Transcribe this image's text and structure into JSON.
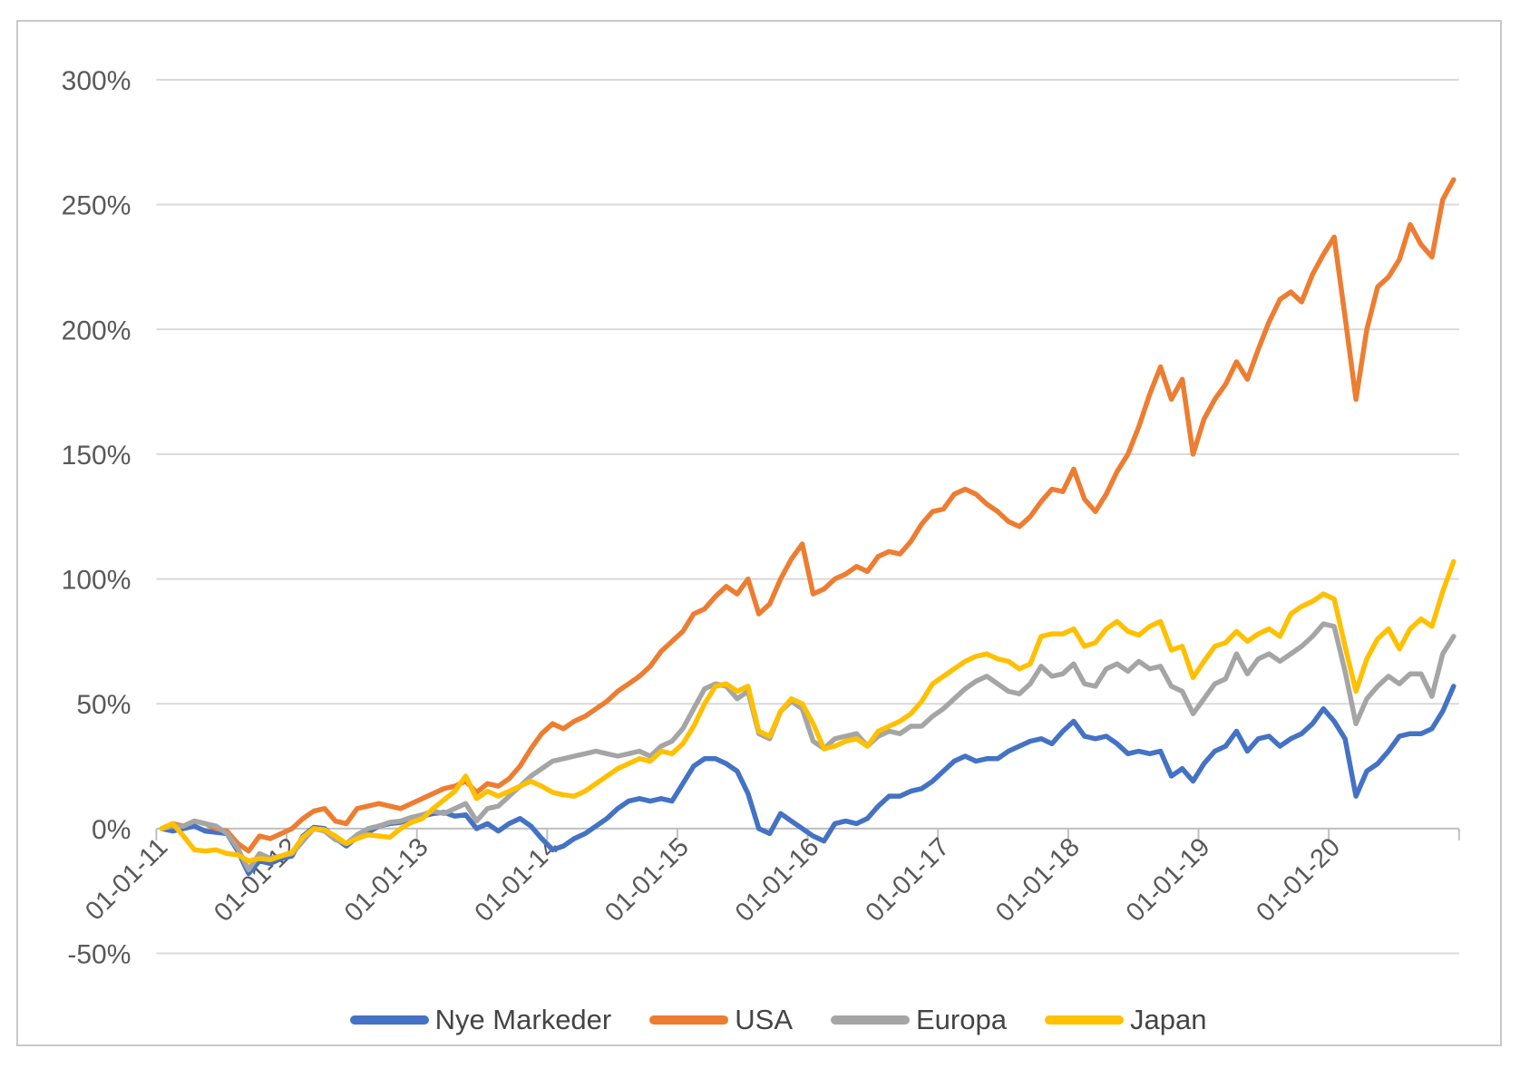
{
  "chart_data": {
    "type": "line",
    "title": "",
    "xlabel": "",
    "ylabel": "",
    "unit": "%",
    "grid": true,
    "legend_position": "bottom",
    "ylim": [
      -50,
      300
    ],
    "y_axis": {
      "tick_values": [
        300,
        250,
        200,
        150,
        100,
        50,
        0,
        -50
      ],
      "tick_labels": [
        "300%",
        "250%",
        "200%",
        "150%",
        "100%",
        "50%",
        "0%",
        "-50%"
      ]
    },
    "x_axis": {
      "tick_labels": [
        "01-01-11",
        "01-01-12",
        "01-01-13",
        "01-01-14",
        "01-01-15",
        "01-01-16",
        "01-01-17",
        "01-01-18",
        "01-01-19",
        "01-01-20"
      ],
      "months_per_tick": 12,
      "points_are_monthly": true,
      "first_point": "01-01-11",
      "last_point": "01-12-20"
    },
    "colors": {
      "gridline": "#d9d9d9",
      "axis_line": "#bfbfbf",
      "axis_text": "#595959",
      "legend_text": "#444444"
    },
    "series": [
      {
        "name": "Nye Markeder",
        "color": "#4472C4",
        "values": [
          0,
          -1,
          0,
          1,
          -1,
          -1.5,
          -2,
          -9,
          -18,
          -13,
          -14,
          -12,
          -11,
          -3,
          0.5,
          0,
          -4,
          -7,
          -3.5,
          -1.5,
          1,
          2,
          2.5,
          4,
          5,
          6,
          6.5,
          5,
          5.5,
          0,
          2,
          -1,
          2,
          4,
          1,
          -4,
          -8.5,
          -7,
          -4,
          -2,
          1,
          4,
          8,
          11,
          12,
          11,
          12,
          11,
          18,
          25,
          28,
          28,
          26,
          23,
          14,
          0,
          -2,
          6,
          3,
          0,
          -3,
          -5,
          2,
          3,
          2,
          4,
          9,
          13,
          13,
          15,
          16,
          19,
          23,
          27,
          29,
          27,
          28,
          28,
          31,
          33,
          35,
          36,
          34,
          39,
          43,
          37,
          36,
          37,
          34,
          30,
          31,
          30,
          31,
          21,
          24,
          19,
          26,
          31,
          33,
          39,
          31,
          36,
          37,
          33,
          36,
          38,
          42,
          48,
          43,
          36,
          13,
          23,
          26,
          31,
          37,
          38,
          38,
          40,
          47,
          57
        ]
      },
      {
        "name": "USA",
        "color": "#ED7D31",
        "values": [
          0,
          2,
          1,
          3,
          2,
          0,
          -1,
          -6,
          -9,
          -3,
          -4,
          -2,
          0,
          4,
          7,
          8,
          3,
          2,
          8,
          9,
          10,
          9,
          8,
          10,
          12,
          14,
          16,
          17,
          19,
          14.5,
          18,
          17,
          20,
          25,
          32,
          38,
          42,
          40,
          43,
          45,
          48,
          51,
          55,
          58,
          61,
          65,
          71,
          75,
          79,
          86,
          88,
          93,
          97,
          94,
          100,
          86,
          90,
          100,
          108,
          114,
          94,
          96,
          100,
          102,
          105,
          103,
          109,
          111,
          110,
          115,
          122,
          127,
          128,
          134,
          136,
          134,
          130,
          127,
          123,
          121,
          125,
          131,
          136,
          135,
          144,
          132,
          127,
          134,
          143,
          150,
          161,
          174,
          185,
          172,
          180,
          150,
          164,
          172,
          178,
          187,
          180,
          192,
          203,
          212,
          215,
          211,
          222,
          230,
          237,
          205,
          172,
          200,
          217,
          221,
          228,
          242,
          234,
          229,
          252,
          260
        ]
      },
      {
        "name": "Europa",
        "color": "#A5A5A5",
        "values": [
          0,
          1,
          1,
          3,
          2,
          1,
          -2,
          -8,
          -16.5,
          -10,
          -12,
          -11,
          -10,
          -5,
          0,
          -1,
          -4.5,
          -6,
          -2.5,
          0,
          1,
          2.5,
          3,
          4.5,
          5.5,
          7,
          6,
          8,
          10,
          3,
          8,
          9,
          13,
          17,
          21,
          24,
          27,
          28,
          29,
          30,
          31,
          30,
          29,
          30,
          31,
          29,
          33,
          35,
          40,
          48,
          56,
          58,
          57,
          52,
          55,
          38,
          36,
          47,
          51,
          48,
          35,
          32,
          36,
          37,
          38,
          33,
          37,
          39,
          38,
          41,
          41,
          45,
          48,
          52,
          56,
          59,
          61,
          58,
          55,
          54,
          58,
          65,
          61,
          62,
          66,
          58,
          57,
          64,
          66,
          63,
          67,
          64,
          65,
          57,
          55,
          46,
          52,
          58,
          60,
          70,
          62,
          68,
          70,
          67,
          70,
          73,
          77,
          82,
          81,
          63,
          42,
          52,
          57,
          61,
          58,
          62,
          62,
          53,
          70,
          77
        ]
      },
      {
        "name": "Japan",
        "color": "#FFC000",
        "values": [
          0,
          2,
          -3,
          -8.5,
          -9,
          -8.5,
          -10,
          -10.5,
          -13,
          -12,
          -12.5,
          -11,
          -9.5,
          -3.5,
          0,
          -0.5,
          -3,
          -6,
          -4,
          -2.5,
          -3,
          -3.5,
          0,
          2.5,
          4,
          8,
          11.5,
          15,
          21,
          12,
          15,
          13,
          15,
          17,
          19,
          17,
          14.5,
          13.5,
          13,
          15,
          18,
          21,
          24,
          26,
          28,
          27,
          31,
          30,
          34,
          41,
          50,
          57,
          58,
          55,
          57,
          39,
          37,
          47,
          52,
          50,
          42,
          32,
          33,
          35,
          36,
          33,
          39,
          41,
          43,
          46,
          51,
          58,
          61,
          64,
          67,
          69,
          70,
          68,
          67,
          64,
          66,
          77,
          78,
          78,
          80,
          73,
          74.5,
          80,
          83,
          79,
          77.5,
          81,
          83,
          71.5,
          73,
          60.5,
          67,
          73,
          74.5,
          79,
          75,
          78,
          80,
          77,
          86,
          89,
          91,
          94,
          92,
          73,
          55,
          68,
          76,
          80,
          72,
          80,
          84,
          81,
          95,
          107
        ]
      }
    ]
  }
}
